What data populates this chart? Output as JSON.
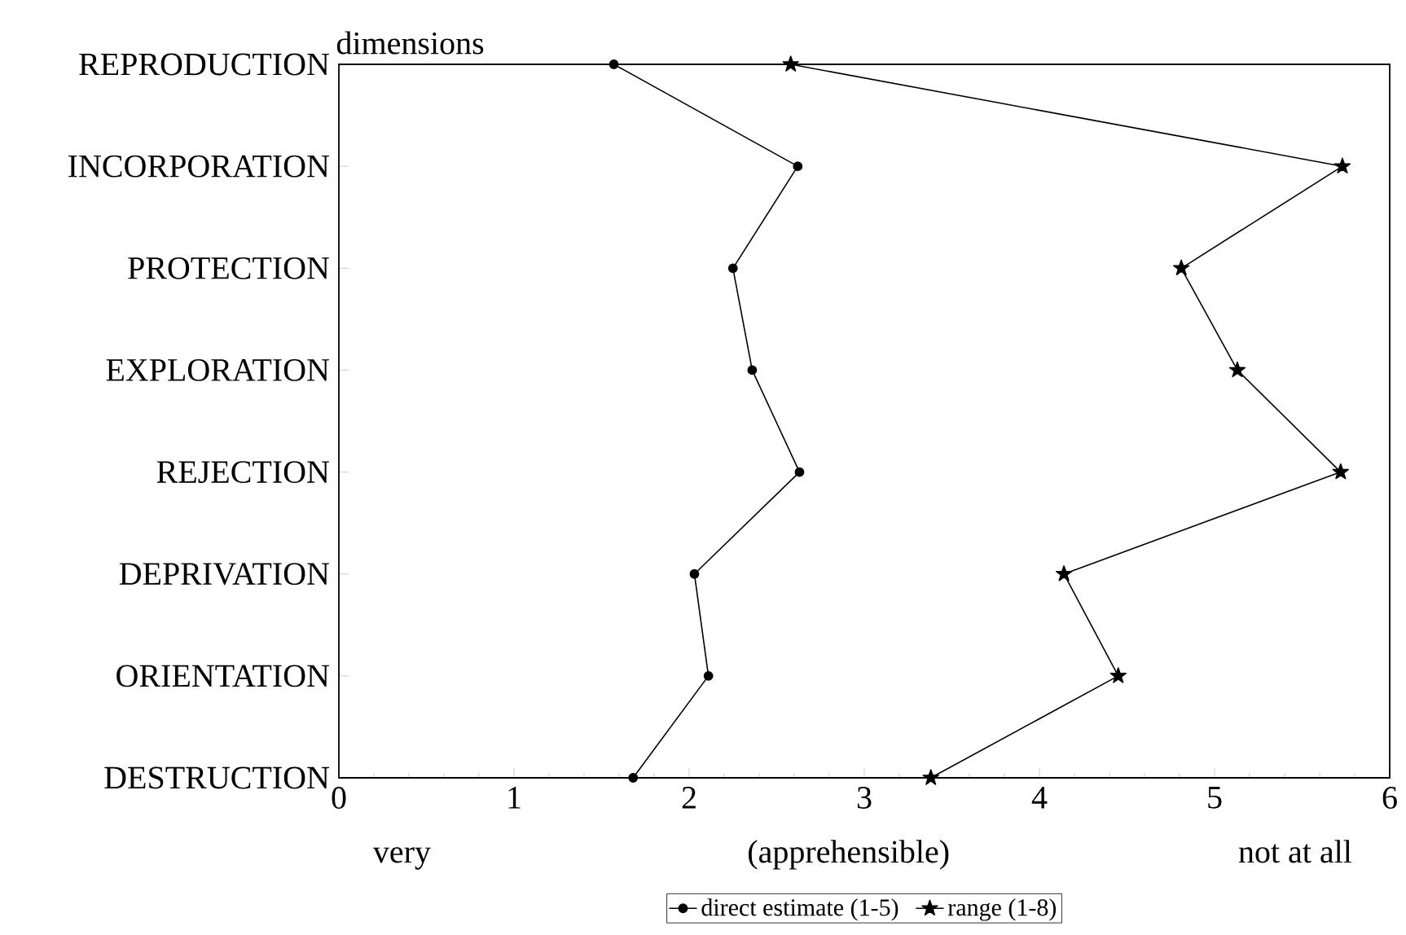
{
  "chart_data": {
    "type": "line",
    "orientation": "horizontal",
    "ylabel": "dimensions",
    "categories": [
      "REPRODUCTION",
      "INCORPORATION",
      "PROTECTION",
      "EXPLORATION",
      "REJECTION",
      "DEPRIVATION",
      "ORIENTATION",
      "DESTRUCTION"
    ],
    "series": [
      {
        "name": "direct estimate (1-5)",
        "color": "#000000",
        "marker": "circle",
        "values": [
          1.57,
          2.62,
          2.25,
          2.36,
          2.63,
          2.03,
          2.11,
          1.68
        ]
      },
      {
        "name": "range (1-8)",
        "color": "#000000",
        "marker": "star",
        "values": [
          2.58,
          5.73,
          4.81,
          5.13,
          5.72,
          4.14,
          4.45,
          3.38
        ]
      }
    ],
    "xlim": [
      0,
      6
    ],
    "xticks": [
      0,
      1,
      2,
      3,
      4,
      5,
      6
    ],
    "annotations": [
      "very",
      "(apprehensible)",
      "not at all"
    ],
    "legend": "bottom",
    "line_style": "solid",
    "grid": false
  }
}
